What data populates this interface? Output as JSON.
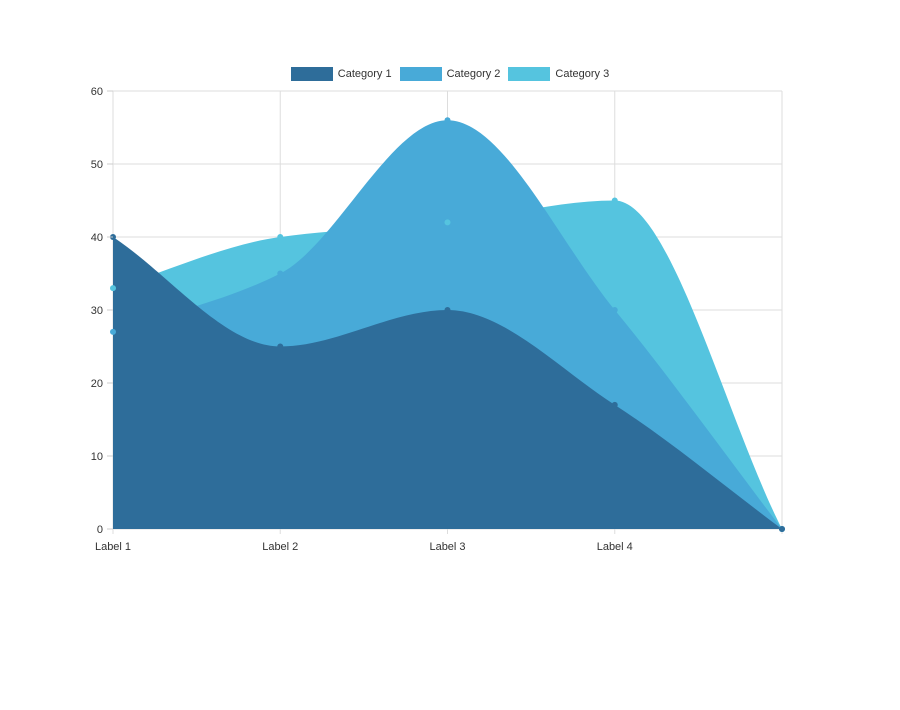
{
  "chart_data": {
    "type": "area",
    "title": "",
    "xlabel": "",
    "ylabel": "",
    "categories": [
      "Label 1",
      "Label 2",
      "Label 3",
      "Label 4",
      ""
    ],
    "series": [
      {
        "name": "Category 1",
        "color": "#2e6d9a",
        "values": [
          40,
          25,
          30,
          17,
          0
        ]
      },
      {
        "name": "Category 2",
        "color": "#48aad8",
        "values": [
          27,
          35,
          56,
          30,
          0
        ]
      },
      {
        "name": "Category 3",
        "color": "#55c4df",
        "values": [
          33,
          40,
          42,
          45,
          0
        ]
      }
    ],
    "ylim": [
      0,
      60
    ],
    "yticks": [
      0,
      10,
      20,
      30,
      40,
      50,
      60
    ],
    "grid": true,
    "legend_position": "top",
    "interpolation": "smooth"
  },
  "legend": {
    "items": [
      {
        "label": "Category 1",
        "color": "#2e6d9a"
      },
      {
        "label": "Category 2",
        "color": "#48aad8"
      },
      {
        "label": "Category 3",
        "color": "#55c4df"
      }
    ]
  }
}
